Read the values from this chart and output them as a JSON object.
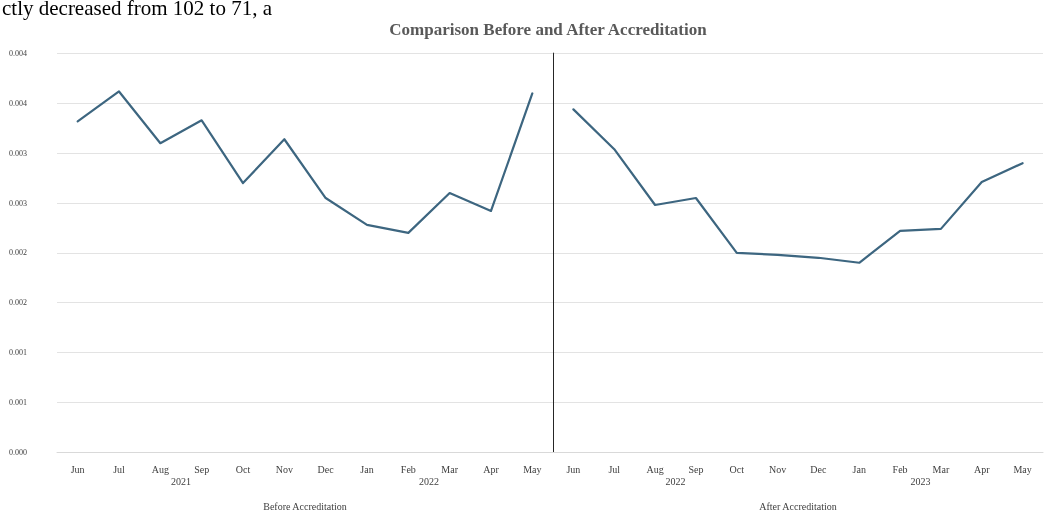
{
  "chart_data": [
    {
      "type": "line",
      "title": "Comparison Before and After Accreditation",
      "xlabel": "Before Accreditation",
      "categories": [
        "Jun",
        "Jul",
        "Aug",
        "Sep",
        "Oct",
        "Nov",
        "Dec",
        "Jan",
        "Feb",
        "Mar",
        "Apr",
        "May"
      ],
      "series": [
        {
          "color": "#3d6680",
          "values": [
            0.00332,
            0.00362,
            0.0031,
            0.00333,
            0.0027,
            0.00314,
            0.00255,
            0.00228,
            0.0022,
            0.0026,
            0.00242,
            0.0036
          ]
        }
      ],
      "ylim": [
        0,
        0.004
      ],
      "yticks": [
        {
          "value": 0,
          "label": "0.000"
        },
        {
          "value": 0.0005,
          "label": "0.001"
        },
        {
          "value": 0.001,
          "label": "0.001"
        },
        {
          "value": 0.0015,
          "label": "0.002"
        },
        {
          "value": 0.002,
          "label": "0.002"
        },
        {
          "value": 0.0025,
          "label": "0.003"
        },
        {
          "value": 0.003,
          "label": "0.003"
        },
        {
          "value": 0.0035,
          "label": "0.004"
        },
        {
          "value": 0.004,
          "label": "0.004"
        }
      ],
      "grid": "y",
      "marker": "none",
      "line_style": "solid",
      "annotations": [
        "2021",
        "2022"
      ]
    },
    {
      "type": "line",
      "xlabel": "After Accreditation",
      "categories": [
        "Jun",
        "Jul",
        "Aug",
        "Sep",
        "Oct",
        "Nov",
        "Dec",
        "Jan",
        "Feb",
        "Mar",
        "Apr",
        "May"
      ],
      "series": [
        {
          "color": "#3d6680",
          "values": [
            0.00344,
            0.00304,
            0.00248,
            0.00255,
            0.002,
            0.00198,
            0.00195,
            0.0019,
            0.00222,
            0.00224,
            0.00271,
            0.0029
          ]
        }
      ],
      "ylim": [
        0,
        0.004
      ],
      "yticks": [
        {
          "value": 0,
          "label": null
        },
        {
          "value": 0.0005,
          "label": null
        },
        {
          "value": 0.001,
          "label": null
        },
        {
          "value": 0.0015,
          "label": null
        },
        {
          "value": 0.002,
          "label": null
        },
        {
          "value": 0.0025,
          "label": null
        },
        {
          "value": 0.003,
          "label": null
        },
        {
          "value": 0.0035,
          "label": null
        },
        {
          "value": 0.004,
          "label": null
        }
      ],
      "grid": "y",
      "marker": "none",
      "line_style": "solid",
      "tick_labels": "x",
      "annotations": [
        "2022",
        "2023"
      ]
    },
    {
      "type": "other",
      "annotations": [
        "ctly decreased from 102 to 71, a"
      ]
    }
  ]
}
